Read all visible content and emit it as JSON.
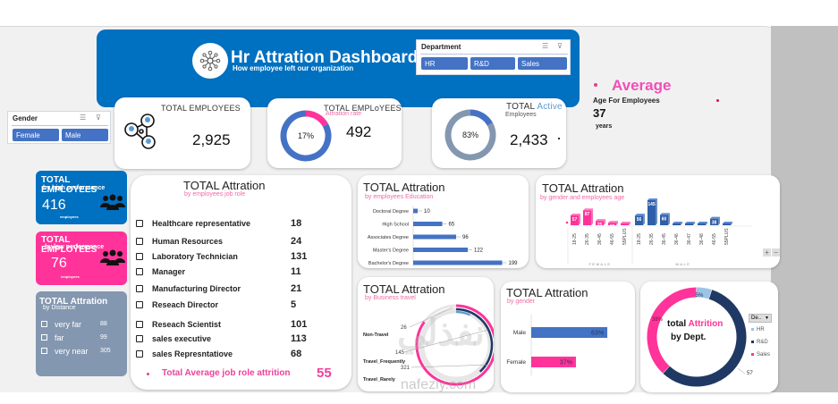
{
  "header": {
    "title": "Hr Attration Dashboard",
    "subtitle": "How employee left our organization",
    "logo_icon": "network-hub-icon"
  },
  "department_slicer": {
    "title": "Department",
    "options": [
      "HR",
      "R&D",
      "Sales"
    ],
    "multi_select_icon": "multi-select-icon",
    "clear_filter_icon": "clear-filter-icon"
  },
  "gender_slicer": {
    "title": "Gender",
    "options": [
      "Female",
      "Male"
    ]
  },
  "kpis": {
    "total_employees": {
      "title": "TOTAL EMPLOYEES",
      "value": "2,925",
      "icon": "people-network-icon"
    },
    "attrition": {
      "title": "TOTAL EMPLoYEES",
      "subtitle": "Attration rate",
      "value": "492",
      "percent_label": "17%",
      "percent": 17
    },
    "active": {
      "title_part1": "TOTAL ",
      "title_part2": "Active",
      "subtitle": "Employees",
      "value": "2,433",
      "percent_label": "83%",
      "percent": 83
    },
    "average_age": {
      "title": "Average",
      "subtitle": "Age For Employees",
      "value": "37",
      "unit": "years"
    }
  },
  "high_performance": {
    "title": "TOTAL EMPLOYEES",
    "subtitle": "by high performance",
    "value": "416",
    "unit": "employees",
    "icon": "group-icon"
  },
  "low_performance": {
    "title": "TOTAL EMPLOYEES",
    "subtitle": "by low performance",
    "value": "76",
    "unit": "employees",
    "icon": "group-icon"
  },
  "distance": {
    "title": "TOTAL Attration",
    "subtitle": "by Distance",
    "items": [
      {
        "label": "very far",
        "value": "88"
      },
      {
        "label": "far",
        "value": "99"
      },
      {
        "label": "very near",
        "value": "305"
      }
    ]
  },
  "job_role": {
    "title": "TOTAL Attration",
    "subtitle": "by employees job role",
    "items": [
      {
        "label": "Healthcare representative",
        "value": "18"
      },
      {
        "label": "Human Resources",
        "value": "24"
      },
      {
        "label": "Laboratory Technician",
        "value": "131"
      },
      {
        "label": "Manager",
        "value": "11"
      },
      {
        "label": "Manufacturing Director",
        "value": "21"
      },
      {
        "label": "Reseach Director",
        "value": "5"
      },
      {
        "label": "Reseach Scientist",
        "value": "101"
      },
      {
        "label": "sales executive",
        "value": "113"
      },
      {
        "label": "sales Represntatiove",
        "value": "68"
      }
    ],
    "average_label": "Total Average job role attrition",
    "average_value": "55"
  },
  "colors": {
    "blue": "#0070c0",
    "bar_blue": "#4472c4",
    "pink": "#ff3399",
    "navy": "#203864",
    "slate": "#8497b0",
    "light_blue": "#9dc3e6"
  },
  "chart_data": [
    {
      "id": "education",
      "type": "bar",
      "orientation": "horizontal",
      "title": "TOTAL Attration",
      "subtitle": "by employees Education",
      "categories": [
        "Doctoral Degree",
        "High School",
        "Associates Degree",
        "Master's Degree",
        "Bachelor's Degree"
      ],
      "values": [
        10,
        65,
        96,
        122,
        199
      ],
      "xlim": [
        0,
        210
      ]
    },
    {
      "id": "gender_age",
      "type": "bar",
      "title": "TOTAL Attration",
      "subtitle": "by gender and employees age",
      "groups": [
        {
          "name": "FEMALE",
          "categories": [
            "18-25",
            "26-35",
            "36-45",
            "46-55",
            "55PLUS"
          ],
          "values": [
            57,
            87,
            25,
            15,
            5
          ]
        },
        {
          "name": "MALE",
          "categories": [
            "18-25",
            "26-35",
            "36-45",
            "36-46",
            "36-47",
            "36-48",
            "46-55",
            "55PLUS"
          ],
          "values": [
            56,
            145,
            60,
            3,
            3,
            3,
            38,
            8
          ]
        }
      ],
      "ylim": [
        0,
        150
      ],
      "zoom_controls": [
        "+",
        "−"
      ]
    },
    {
      "id": "business_travel",
      "type": "pie",
      "style": "radial-rings",
      "title": "TOTAL Attration",
      "subtitle": "by Business travel",
      "categories": [
        "Non-Travel",
        "Travel_Frequently",
        "Travel_Rarely"
      ],
      "values": [
        26,
        145,
        321
      ]
    },
    {
      "id": "gender",
      "type": "bar",
      "orientation": "horizontal",
      "title": "TOTAL Attration",
      "subtitle": "by gender",
      "categories": [
        "Male",
        "Female"
      ],
      "values": [
        63,
        37
      ],
      "value_labels": [
        "63%",
        "37%"
      ],
      "xlim": [
        0,
        100
      ]
    },
    {
      "id": "dept",
      "type": "pie",
      "style": "donut",
      "title_part1": "total ",
      "title_part2": "Attrition",
      "title_part3": "by Dept.",
      "categories": [
        "HR",
        "R&D",
        "Sales"
      ],
      "values": [
        5,
        57,
        38
      ],
      "value_labels": [
        "5%",
        "57%",
        "38%"
      ],
      "legend_filter_label": "De..",
      "legend": "right"
    }
  ],
  "watermark": {
    "arabic": "نفذلي",
    "latin": "nafezly.com"
  }
}
